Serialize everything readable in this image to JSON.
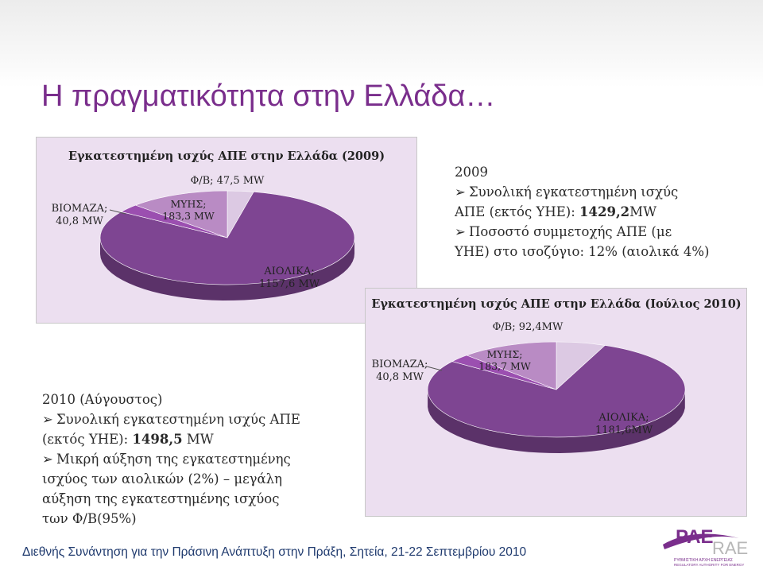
{
  "slide": {
    "title": "Η πραγματικότητα στην Ελλάδα…",
    "footer": "Διεθνής Συνάντηση για την Πράσινη Ανάπτυξη στην Πράξη, Σητεία, 21-22 Σεπτεμβρίου 2010"
  },
  "block2009": {
    "year": "2009",
    "b1": "Συνολική εγκατεστημένη ισχύς",
    "b1_line2_pre": "ΑΠΕ (εκτός ΥΗΕ): ",
    "b1_value": "1429,2",
    "b1_unit": "MW",
    "b2": "Ποσοστό συμμετοχής ΑΠΕ (με",
    "b2_line2": "ΥΗΕ) στο ισοζύγιο: 12% (αιολικά 4%)"
  },
  "block2010": {
    "year": "2010 (Αύγουστος)",
    "b1": "Συνολική εγκατεστημένη ισχύς ΑΠΕ",
    "b1_line2_pre": "(εκτός ΥΗΕ): ",
    "b1_value": "1498,5",
    "b1_unit": " MW",
    "b2": "Μικρή αύξηση της εγκατεστημένης",
    "b2_line2": "ισχύος των αιολικών (2%) – μεγάλη",
    "b2_line3": "αύξηση της εγκατεστημένης ισχύος",
    "b2_line4": "των Φ/Β(95%)"
  },
  "logo": {
    "primary": "ΡΑΕ",
    "secondary": "RAE",
    "tagline": "ΡΥΘΜΙΣΤΙΚΗ ΑΡΧΗ ΕΝΕΡΓΕΙΑΣ",
    "tagline_en": "REGULATORY AUTHORITY FOR ENERGY"
  },
  "colors": {
    "title": "#7a2e8c",
    "footer": "#1f3a6e",
    "panel_bg": "#ecdff0",
    "wind": "#7e4592",
    "hydro": "#b98bc4",
    "biomass": "#9b4fb0",
    "pv": "#dcc9e3"
  },
  "chart_data": [
    {
      "type": "pie",
      "title": "Εγκατεστημένη ισχύς ΑΠΕ στην Ελλάδα (2009)",
      "slices": [
        {
          "category": "ΑΙΟΛΙΚΑ",
          "value": 1157.6,
          "label": "ΑΙΟΛΙΚΑ;",
          "value_label": "1157,6 MW"
        },
        {
          "category": "ΒΙΟΜΑΖΑ",
          "value": 40.8,
          "label": "ΒΙΟΜΑΖΑ;",
          "value_label": "40,8 MW"
        },
        {
          "category": "ΜΥΗΣ",
          "value": 183.3,
          "label": "ΜΥΗΣ;",
          "value_label": "183,3 MW"
        },
        {
          "category": "Φ/Β",
          "value": 47.5,
          "label": "Φ/Β; 47,5 MW",
          "value_label": ""
        }
      ]
    },
    {
      "type": "pie",
      "title": "Εγκατεστημένη ισχύς ΑΠΕ στην Ελλάδα (Ιούλιος 2010)",
      "slices": [
        {
          "category": "ΑΙΟΛΙΚΑ",
          "value": 1181.6,
          "label": "ΑΙΟΛΙΚΑ;",
          "value_label": "1181,6MW"
        },
        {
          "category": "ΒΙΟΜΑΖΑ",
          "value": 40.8,
          "label": "ΒΙΟΜΑΖΑ;",
          "value_label": "40,8 MW"
        },
        {
          "category": "ΜΥΗΣ",
          "value": 183.7,
          "label": "ΜΥΗΣ;",
          "value_label": "183,7 MW"
        },
        {
          "category": "Φ/Β",
          "value": 92.4,
          "label": "Φ/Β; 92,4MW",
          "value_label": ""
        }
      ]
    }
  ]
}
